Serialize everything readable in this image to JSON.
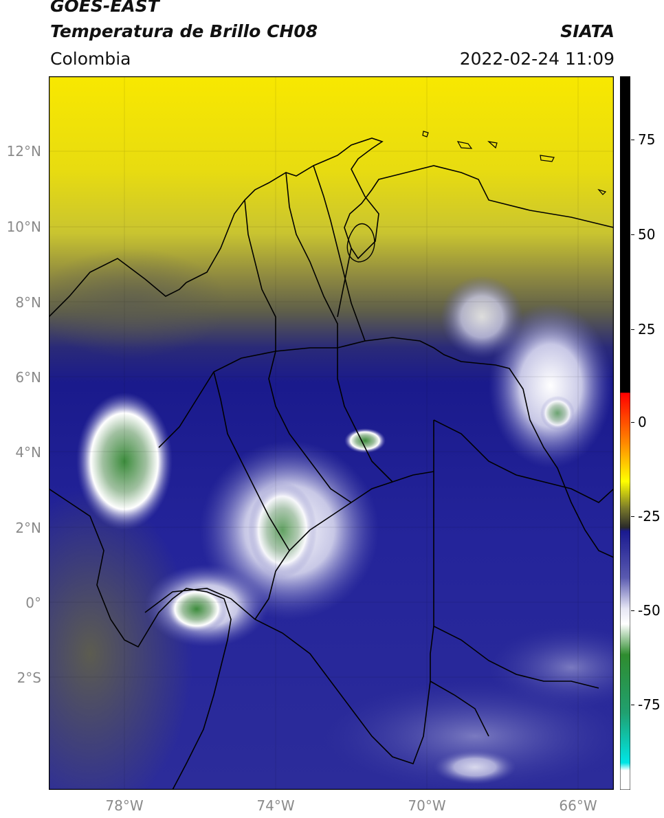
{
  "header": {
    "satellite": "GOES-EAST",
    "product": "Temperatura de Brillo CH08",
    "region": "Colombia",
    "institution": "SIATA",
    "datetime": "2022-02-24 11:09"
  },
  "map": {
    "extent": {
      "lon_min": -80,
      "lon_max": -65,
      "lat_min": -5,
      "lat_max": 14
    },
    "lat_ticks": [
      {
        "value": 12,
        "label": "12°N"
      },
      {
        "value": 10,
        "label": "10°N"
      },
      {
        "value": 8,
        "label": "8°N"
      },
      {
        "value": 6,
        "label": "6°N"
      },
      {
        "value": 4,
        "label": "4°N"
      },
      {
        "value": 2,
        "label": "2°N"
      },
      {
        "value": 0,
        "label": "0°"
      },
      {
        "value": -2,
        "label": "2°S"
      }
    ],
    "lon_ticks": [
      {
        "value": -78,
        "label": "78°W"
      },
      {
        "value": -74,
        "label": "74°W"
      },
      {
        "value": -70,
        "label": "70°W"
      },
      {
        "value": -66,
        "label": "66°W"
      }
    ],
    "gridlines": true,
    "colors": {
      "warm_band": "#f5e600",
      "olive_band": "#6e6e3a",
      "gray_band": "#5a5a52",
      "deep_blue": "#1a1a8c",
      "mid_blue": "#3a3aa0",
      "light_blue": "#8e8ec8",
      "cold_white": "#ffffff",
      "cold_green": "#3c8c3c",
      "border": "#000000"
    }
  },
  "colorbar": {
    "ticks": [
      {
        "value": 75,
        "label": "75"
      },
      {
        "value": 50,
        "label": "50"
      },
      {
        "value": 25,
        "label": "25"
      },
      {
        "value": 0,
        "label": "0"
      },
      {
        "value": -25,
        "label": "-25"
      },
      {
        "value": -50,
        "label": "-50"
      },
      {
        "value": -75,
        "label": "-75"
      }
    ],
    "range": [
      -95,
      90
    ],
    "stops": [
      {
        "value": 90,
        "color": "#000000"
      },
      {
        "value": 8,
        "color": "#000000"
      },
      {
        "value": 7.9,
        "color": "#ff0000"
      },
      {
        "value": -5,
        "color": "#ff8800"
      },
      {
        "value": -15,
        "color": "#ffff00"
      },
      {
        "value": -22,
        "color": "#7a7a2a"
      },
      {
        "value": -27,
        "color": "#2a2a2a"
      },
      {
        "value": -28,
        "color": "#1a1a90"
      },
      {
        "value": -40,
        "color": "#5a5ab0"
      },
      {
        "value": -48,
        "color": "#e6e6f4"
      },
      {
        "value": -52,
        "color": "#ffffff"
      },
      {
        "value": -60,
        "color": "#2f8c2f"
      },
      {
        "value": -75,
        "color": "#20a070"
      },
      {
        "value": -88,
        "color": "#00e6e6"
      },
      {
        "value": -90,
        "color": "#ffffff"
      },
      {
        "value": -95,
        "color": "#ffffff"
      }
    ]
  }
}
